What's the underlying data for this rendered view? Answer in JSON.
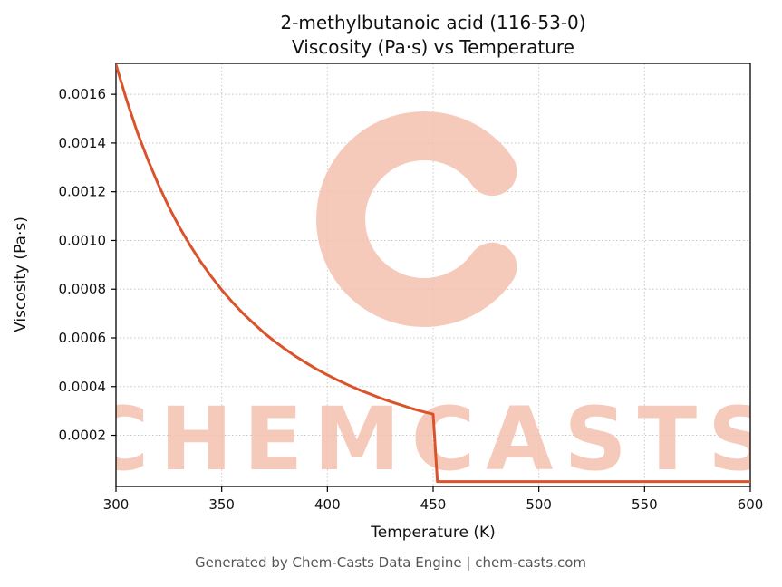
{
  "title": {
    "line1": "2-methylbutanoic acid (116-53-0)",
    "line2": "Viscosity (Pa·s) vs Temperature"
  },
  "footer": "Generated by Chem-Casts Data Engine | chem-casts.com",
  "watermark": {
    "text": "CHEMCASTS",
    "color": "#f4c1ae",
    "logo": "c-brush-logo"
  },
  "chart_data": {
    "type": "line",
    "title": "2-methylbutanoic acid (116-53-0) — Viscosity (Pa·s) vs Temperature",
    "xlabel": "Temperature (K)",
    "ylabel": "Viscosity (Pa·s)",
    "xlim": [
      300,
      600
    ],
    "ylim": [
      -1e-05,
      0.001727
    ],
    "x_ticks": [
      300,
      350,
      400,
      450,
      500,
      550,
      600
    ],
    "y_ticks": [
      0.0002,
      0.0004,
      0.0006,
      0.0008,
      0.001,
      0.0012,
      0.0014,
      0.0016
    ],
    "y_tick_labels": [
      "0.0002",
      "0.0004",
      "0.0006",
      "0.0008",
      "0.0010",
      "0.0012",
      "0.0014",
      "0.0016"
    ],
    "grid": true,
    "legend": "none",
    "line_color": "#d9532b",
    "series": [
      {
        "name": "viscosity",
        "x": [
          300,
          305,
          310,
          315,
          320,
          325,
          330,
          335,
          340,
          345,
          350,
          355,
          360,
          365,
          370,
          375,
          380,
          385,
          390,
          395,
          400,
          405,
          410,
          415,
          420,
          425,
          430,
          435,
          440,
          444,
          448,
          450,
          452,
          460,
          480,
          500,
          520,
          540,
          560,
          580,
          600
        ],
        "y": [
          0.001721,
          0.001577,
          0.001447,
          0.001333,
          0.00123,
          0.001138,
          0.001055,
          0.000981,
          0.000913,
          0.000853,
          0.000797,
          0.000747,
          0.000701,
          0.00066,
          0.000621,
          0.000586,
          0.000554,
          0.000524,
          0.000497,
          0.000471,
          0.000448,
          0.000426,
          0.000406,
          0.000387,
          0.00037,
          0.000353,
          0.000338,
          0.000324,
          0.00031,
          0.0003,
          0.000291,
          0.000287,
          1e-05,
          1e-05,
          1e-05,
          1e-05,
          1e-05,
          1e-05,
          1e-05,
          1e-05,
          1e-05
        ]
      }
    ]
  }
}
